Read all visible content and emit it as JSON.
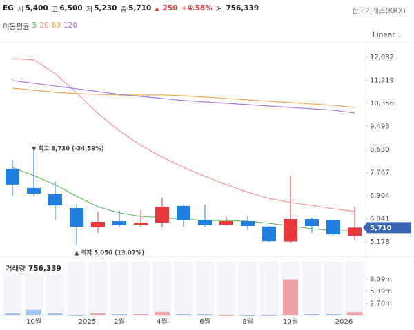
{
  "header": {
    "symbol": "EG",
    "fields": [
      {
        "label": "시",
        "value": "5,400"
      },
      {
        "label": "고",
        "value": "6,500"
      },
      {
        "label": "저",
        "value": "5,230"
      },
      {
        "label": "종",
        "value": "5,710"
      }
    ],
    "change_arrow": "▲",
    "change": "250",
    "change_pct": "+4.58%",
    "volume_label": "거",
    "volume": "756,339",
    "exchange": "한국거래소(KRX)"
  },
  "chart_data": {
    "type": "candlestick",
    "scale": "Linear",
    "ma_title": "이동평균",
    "ohlc": {
      "open": [
        7900,
        7190,
        6960,
        6440,
        5720,
        5950,
        5800,
        5900,
        6520,
        5980,
        5820,
        5950,
        5750,
        5190,
        6030,
        5980,
        5400
      ],
      "high": [
        8250,
        8730,
        7450,
        6560,
        6310,
        6340,
        6360,
        6830,
        6570,
        6570,
        6130,
        6130,
        5770,
        7650,
        6080,
        5990,
        6500
      ],
      "low": [
        6880,
        6900,
        5980,
        5050,
        5510,
        5720,
        5720,
        5720,
        5720,
        5740,
        5790,
        5640,
        5180,
        5130,
        5510,
        5420,
        5230
      ],
      "close": [
        7320,
        6980,
        6540,
        5745,
        5925,
        5800,
        5900,
        6490,
        5980,
        5800,
        5950,
        5770,
        5200,
        6030,
        5770,
        5460,
        5710
      ]
    },
    "up_color": "#e8383d",
    "down_color": "#1f7fe0",
    "moving_averages": [
      {
        "name": "5",
        "color": "#5cb85c",
        "values": [
          7960,
          7651,
          7316,
          6878,
          6492,
          6260,
          6132,
          6080,
          6028,
          5977,
          5977,
          5951,
          5874,
          5771,
          5668,
          5591,
          5591
        ]
      },
      {
        "name": "20",
        "color": "#f08a8a",
        "values": [
          12030,
          11979,
          11464,
          10743,
          9970,
          9326,
          8785,
          8347,
          7960,
          7626,
          7316,
          7033,
          6801,
          6647,
          6544,
          6415,
          6312
        ]
      },
      {
        "name": "60",
        "color": "#f0a050",
        "values": [
          10923,
          10846,
          10768,
          10717,
          10691,
          10665,
          10665,
          10665,
          10639,
          10588,
          10536,
          10485,
          10433,
          10382,
          10330,
          10279,
          10202
        ]
      },
      {
        "name": "120",
        "color": "#a070e0",
        "values": [
          11206,
          11103,
          11000,
          10897,
          10794,
          10691,
          10614,
          10536,
          10459,
          10408,
          10356,
          10305,
          10253,
          10202,
          10150,
          10099,
          9995
        ]
      }
    ],
    "ylim": [
      4690,
      12620
    ],
    "yticks": [
      {
        "value": 12082,
        "label": "12,082"
      },
      {
        "value": 11219,
        "label": "11,219"
      },
      {
        "value": 10356,
        "label": "10,356"
      },
      {
        "value": 9493,
        "label": "9,493"
      },
      {
        "value": 8630,
        "label": "8,630"
      },
      {
        "value": 7767,
        "label": "7,767"
      },
      {
        "value": 6904,
        "label": "6,904"
      },
      {
        "value": 6041,
        "label": "6,041"
      },
      {
        "value": 5178,
        "label": "5,178"
      }
    ],
    "last_price": {
      "value": 5710,
      "label": "5,710"
    },
    "annotations": [
      {
        "text": "▼ 최고 8,730 (-34.59%)",
        "color": "#5a6ea8"
      },
      {
        "text": "▲ 최저 5,050 (13.07%)",
        "color": "#5a6ea8"
      }
    ],
    "xticks": [
      {
        "value": 1,
        "label": "10월"
      },
      {
        "value": 3.5,
        "label": "2025"
      },
      {
        "value": 5,
        "label": "2월"
      },
      {
        "value": 7,
        "label": "4월"
      },
      {
        "value": 9,
        "label": "6월"
      },
      {
        "value": 11,
        "label": "8월"
      },
      {
        "value": 13,
        "label": "10월"
      },
      {
        "value": 15.5,
        "label": "2026"
      }
    ],
    "volume": {
      "title": "거래량",
      "last_label": "756,339",
      "values": [
        470000,
        1270000,
        470000,
        160000,
        470000,
        320000,
        320000,
        790000,
        320000,
        320000,
        160000,
        160000,
        160000,
        8090000,
        320000,
        320000,
        756339
      ],
      "up_color": "#f2a1a4",
      "down_color": "#9cc3ee",
      "ylim": [
        0,
        12350000
      ],
      "yticks": [
        {
          "value": 8090000,
          "label": "8.09m"
        },
        {
          "value": 5390000,
          "label": "5.39m"
        },
        {
          "value": 2700000,
          "label": "2.70m"
        }
      ]
    }
  }
}
